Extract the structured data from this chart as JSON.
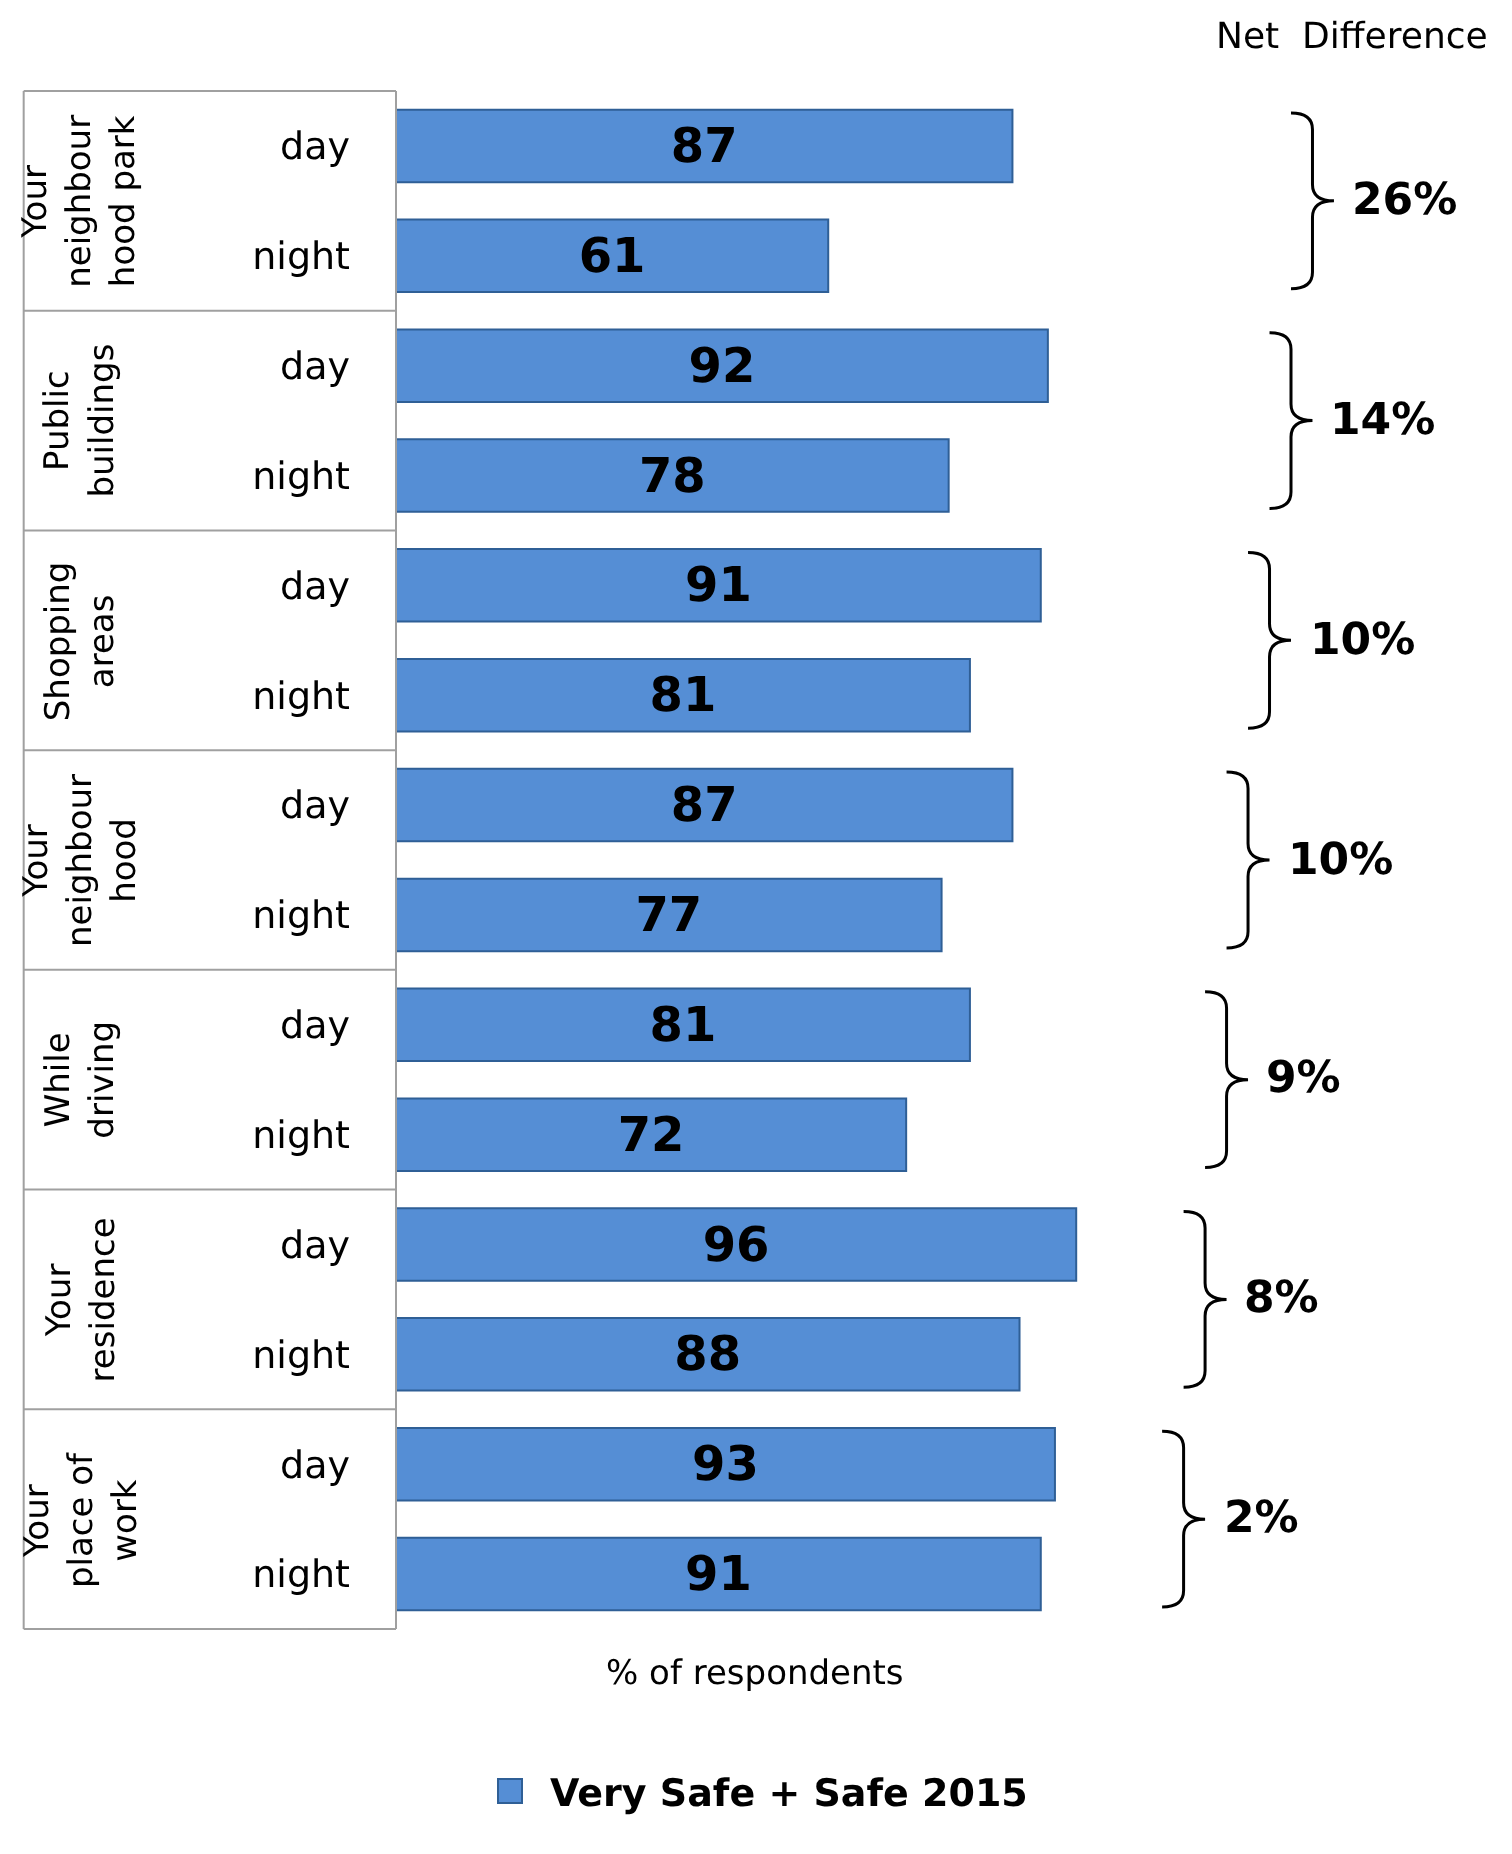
{
  "chart_data": {
    "type": "bar",
    "orientation": "horizontal",
    "xlabel": "% of respondents",
    "categories": [
      "day",
      "night",
      "day",
      "night",
      "day",
      "night",
      "day",
      "night",
      "day",
      "night",
      "day",
      "night",
      "day",
      "night"
    ],
    "series": [
      {
        "name": "Very Safe + Safe 2015",
        "color": "#558ed5",
        "values": [
          87,
          61,
          92,
          78,
          91,
          81,
          87,
          77,
          81,
          72,
          96,
          88,
          93,
          91
        ]
      }
    ],
    "data_labels": true,
    "legend": "bottom",
    "annotations": [
      "Your\nneighbour\nhood park",
      "Public\nbuildings",
      "Shopping\nareas",
      "Your\nneighbour\nhood",
      "While\ndriving",
      "Your\nresidence",
      "Your\nplace of\nwork",
      "Net  Difference",
      "26%",
      "14%",
      "10%",
      "10%",
      "9%",
      "8%",
      "2%"
    ]
  }
}
